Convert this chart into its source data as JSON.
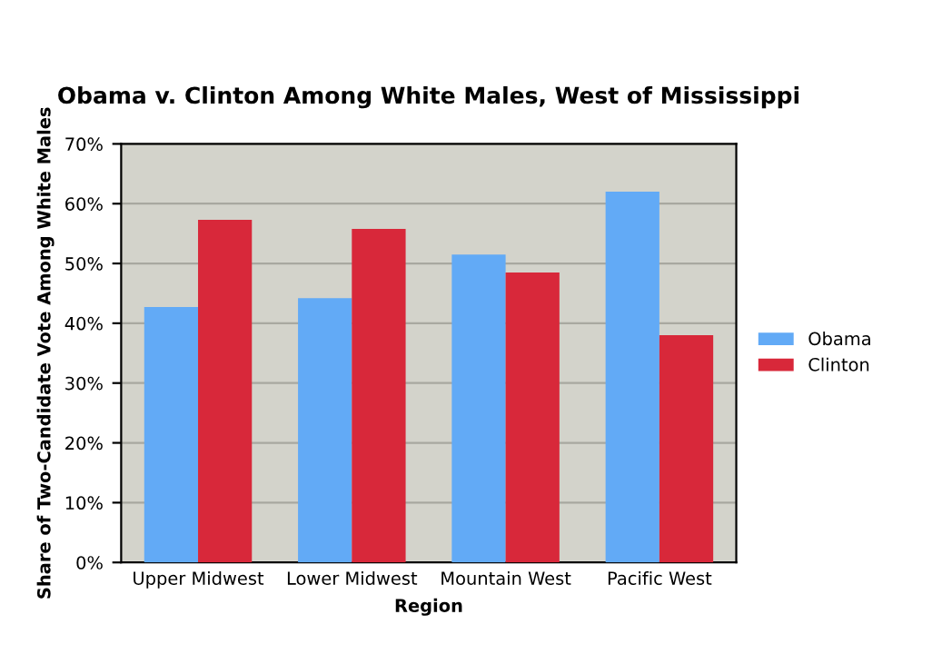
{
  "chart_data": {
    "type": "bar",
    "title": "Obama v. Clinton Among White Males, West of Mississippi",
    "xlabel": "Region",
    "ylabel": "Share of Two-Candidate Vote Among White Males",
    "categories": [
      "Upper Midwest",
      "Lower Midwest",
      "Mountain West",
      "Pacific West"
    ],
    "series": [
      {
        "name": "Obama",
        "color": "#62aaf6",
        "values": [
          42.7,
          44.2,
          51.5,
          62.0
        ]
      },
      {
        "name": "Clinton",
        "color": "#d8283a",
        "values": [
          57.3,
          55.8,
          48.5,
          38.0
        ]
      }
    ],
    "ylim": [
      0,
      70
    ],
    "yticks": [
      {
        "value": 0,
        "label": "0%"
      },
      {
        "value": 10,
        "label": "10%"
      },
      {
        "value": 20,
        "label": "20%"
      },
      {
        "value": 30,
        "label": "30%"
      },
      {
        "value": 40,
        "label": "40%"
      },
      {
        "value": 50,
        "label": "50%"
      },
      {
        "value": 60,
        "label": "60%"
      },
      {
        "value": 70,
        "label": "70%"
      }
    ],
    "grid": "y",
    "legend": "right"
  }
}
